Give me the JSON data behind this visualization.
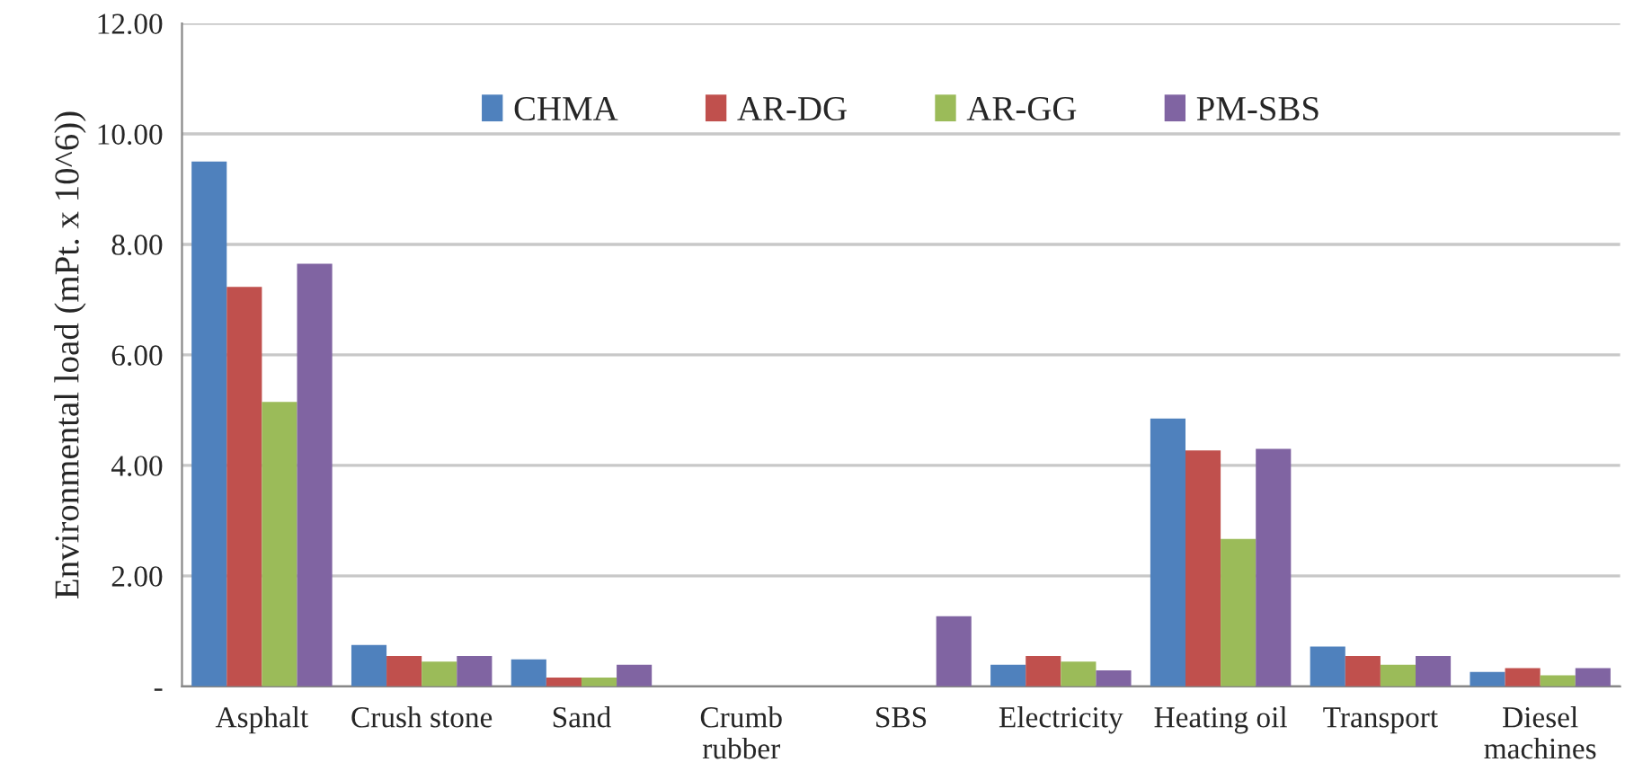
{
  "chart_data": {
    "type": "bar",
    "ylabel": "Environmental load (mPt. x 10^6))",
    "categories": [
      "Asphalt",
      "Crush stone",
      "Sand",
      "Crumb\nrubber",
      "SBS",
      "Electricity",
      "Heating oil",
      "Transport",
      "Diesel\nmachines"
    ],
    "series": [
      {
        "name": "CHMA",
        "color": "#4f81bd",
        "values": [
          9.5,
          0.75,
          0.49,
          null,
          null,
          0.39,
          4.85,
          0.72,
          0.26
        ]
      },
      {
        "name": "AR-DG",
        "color": "#c0504d",
        "values": [
          7.23,
          0.55,
          0.16,
          null,
          null,
          0.55,
          4.27,
          0.55,
          0.33
        ]
      },
      {
        "name": "AR-GG",
        "color": "#9bbb59",
        "values": [
          5.15,
          0.45,
          0.16,
          null,
          null,
          0.45,
          2.67,
          0.39,
          0.2
        ]
      },
      {
        "name": "PM-SBS",
        "color": "#8064a2",
        "values": [
          7.65,
          0.55,
          0.39,
          null,
          1.27,
          0.29,
          4.3,
          0.55,
          0.33
        ]
      }
    ],
    "ylim": [
      0,
      12
    ],
    "yticks": [
      {
        "value": 0,
        "label": "-"
      },
      {
        "value": 2,
        "label": "2.00"
      },
      {
        "value": 4,
        "label": "4.00"
      },
      {
        "value": 6,
        "label": "6.00"
      },
      {
        "value": 8,
        "label": "8.00"
      },
      {
        "value": 10,
        "label": "10.00"
      },
      {
        "value": 12,
        "label": "12.00"
      }
    ],
    "grid": "y",
    "legend": "top"
  }
}
